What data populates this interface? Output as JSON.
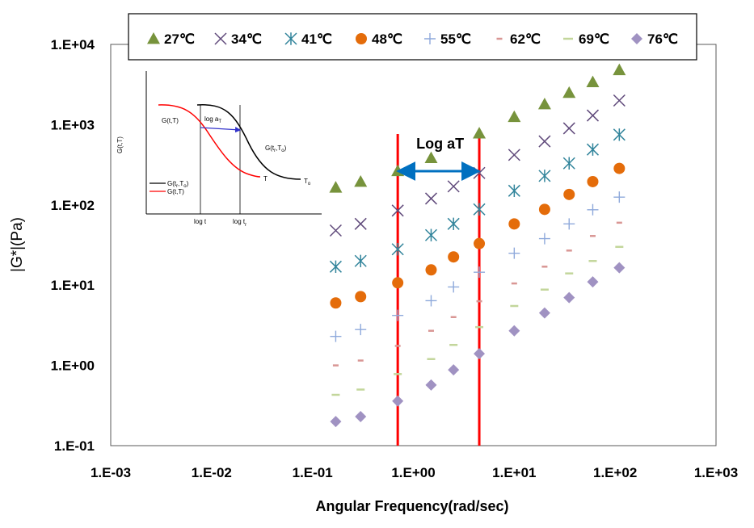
{
  "chart_data": {
    "type": "scatter",
    "xlabel": "Angular Frequency(rad/sec)",
    "ylabel": "|G*|(Pa)",
    "x_scale": "log",
    "y_scale": "log",
    "xlim": [
      0.001,
      1000
    ],
    "ylim": [
      0.1,
      10000
    ],
    "x_tick_labels": [
      "1.E-03",
      "1.E-02",
      "1.E-01",
      "1.E+00",
      "1.E+01",
      "1.E+02",
      "1.E+03"
    ],
    "y_tick_labels": [
      "1.E-01",
      "1.E+00",
      "1.E+01",
      "1.E+02",
      "1.E+03",
      "1.E+04"
    ],
    "legend_position": "top",
    "series": [
      {
        "name": "27℃",
        "marker": "triangle",
        "color": "#77933c",
        "x": [
          0.17,
          0.3,
          0.7,
          1.5,
          4.5,
          10,
          20,
          35,
          60,
          110
        ],
        "y": [
          165,
          195,
          265,
          385,
          780,
          1250,
          1800,
          2500,
          3400,
          4800
        ]
      },
      {
        "name": "34℃",
        "marker": "x",
        "color": "#604a7b",
        "x": [
          0.17,
          0.3,
          0.7,
          1.5,
          2.5,
          4.5,
          10,
          20,
          35,
          60,
          110
        ],
        "y": [
          48,
          58,
          85,
          120,
          170,
          250,
          420,
          620,
          900,
          1300,
          2000
        ]
      },
      {
        "name": "41℃",
        "marker": "asterisk",
        "color": "#31849b",
        "x": [
          0.17,
          0.3,
          0.7,
          1.5,
          2.5,
          4.5,
          10,
          20,
          35,
          60,
          110
        ],
        "y": [
          17,
          20,
          28,
          42,
          58,
          88,
          150,
          230,
          330,
          490,
          750
        ]
      },
      {
        "name": "48℃",
        "marker": "circle",
        "color": "#e46c0a",
        "x": [
          0.17,
          0.3,
          0.7,
          1.5,
          2.5,
          4.5,
          10,
          20,
          35,
          60,
          110
        ],
        "y": [
          6,
          7.2,
          10.7,
          15.5,
          22.5,
          33,
          58,
          88,
          135,
          195,
          285
        ]
      },
      {
        "name": "55℃",
        "marker": "plus",
        "color": "#8ea9db",
        "x": [
          0.17,
          0.3,
          0.7,
          1.5,
          2.5,
          4.5,
          10,
          20,
          35,
          60,
          110
        ],
        "y": [
          2.3,
          2.8,
          4.2,
          6.4,
          9.5,
          14.5,
          25,
          38,
          58,
          87,
          125
        ]
      },
      {
        "name": "62℃",
        "marker": "dash",
        "color": "#d99694",
        "x": [
          0.17,
          0.3,
          0.7,
          1.5,
          2.5,
          4.5,
          10,
          20,
          35,
          60,
          110
        ],
        "y": [
          1.0,
          1.15,
          1.75,
          2.7,
          4.0,
          6.3,
          10.5,
          17,
          27,
          41,
          60
        ]
      },
      {
        "name": "69℃",
        "marker": "dash",
        "color": "#c3d69b",
        "x": [
          0.17,
          0.3,
          0.7,
          1.5,
          2.5,
          4.5,
          10,
          20,
          35,
          60,
          110
        ],
        "y": [
          0.43,
          0.5,
          0.78,
          1.2,
          1.8,
          3.0,
          5.5,
          8.8,
          14,
          20,
          30
        ]
      },
      {
        "name": "76℃",
        "marker": "diamond",
        "color": "#a092c2",
        "x": [
          0.17,
          0.3,
          0.7,
          1.5,
          2.5,
          4.5,
          10,
          20,
          35,
          60,
          110
        ],
        "y": [
          0.2,
          0.23,
          0.36,
          0.57,
          0.88,
          1.4,
          2.7,
          4.5,
          7.0,
          11,
          16.5
        ]
      }
    ],
    "vertical_lines": {
      "x": [
        0.7,
        4.5
      ],
      "color": "#ff0000"
    },
    "annotation": {
      "text": "Log aT",
      "arrow_from_x": 0.7,
      "arrow_to_x": 4.5,
      "arrow_y": 265,
      "arrow_color": "#0070c0"
    },
    "inset": {
      "ylabel": "G(t,T)",
      "xtick_1": "log t",
      "xtick_2_main": "log t",
      "xtick_2_sub": "r",
      "label_top_left": "G(t,T)",
      "arrow_label_main": "log a",
      "arrow_label_sub": "T",
      "curve_label_main": "G(t",
      "curve_label_sub": "r",
      "curve_label_mid": ",T",
      "curve_label_sub2": "o",
      "curve_label_end": ")",
      "end_label_T": "T",
      "end_label_To_main": "T",
      "end_label_To_sub": "o",
      "legend": [
        {
          "label_main": "G(t",
          "label_sub": "r",
          "label_mid": ",T",
          "label_sub2": "o",
          "label_end": ")",
          "color": "#000000"
        },
        {
          "label_main": "G(t,T)",
          "label_sub": "",
          "label_mid": "",
          "label_sub2": "",
          "label_end": "",
          "color": "#ff0000"
        }
      ]
    }
  }
}
